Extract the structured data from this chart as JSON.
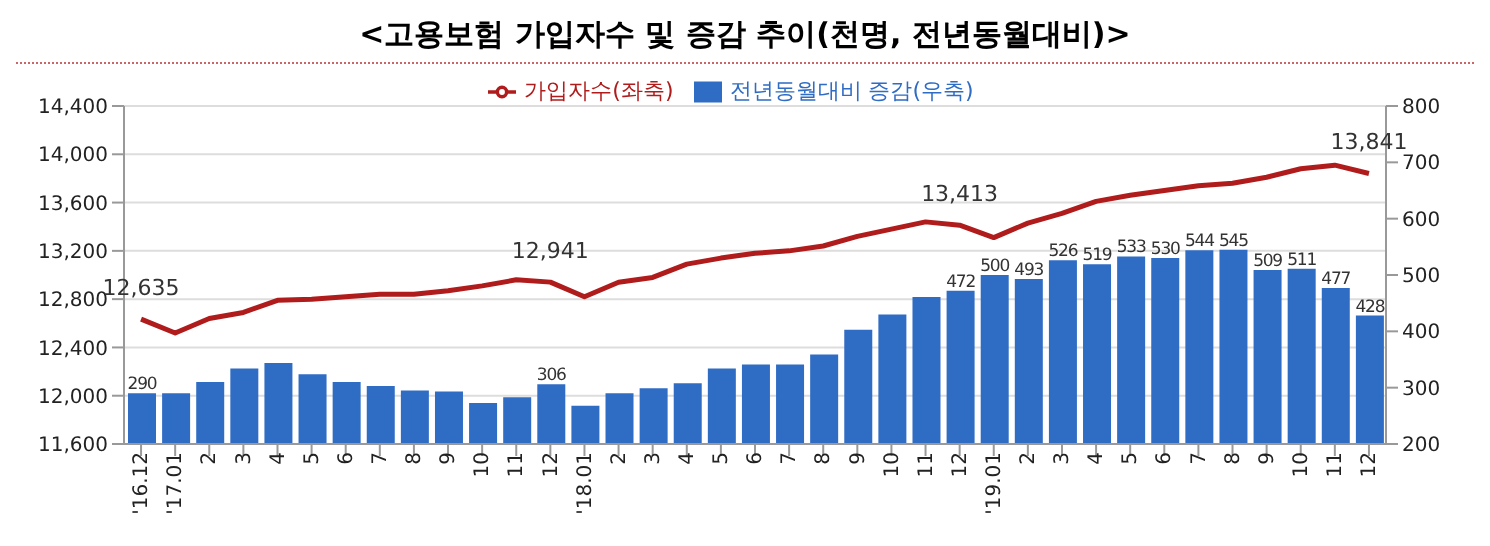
{
  "chart_data": {
    "type": "bar",
    "title": "<고용보험 가입자수 및 증감 추이(천명, 전년동월대비)>",
    "categories": [
      "'16.12",
      "'17.01",
      "2",
      "3",
      "4",
      "5",
      "6",
      "7",
      "8",
      "9",
      "10",
      "11",
      "12",
      "'18.01",
      "2",
      "3",
      "4",
      "5",
      "6",
      "7",
      "8",
      "9",
      "10",
      "11",
      "12",
      "'19.01",
      "2",
      "3",
      "4",
      "5",
      "6",
      "7",
      "8",
      "9",
      "10",
      "11",
      "12"
    ],
    "series": [
      {
        "name": "전년동월대비 증감(우축)",
        "axis": "y2",
        "color": "#2f6cc4",
        "values": [
          290,
          290,
          310,
          334,
          344,
          324,
          310,
          303,
          295,
          293,
          273,
          283,
          306,
          268,
          290,
          299,
          308,
          334,
          341,
          341,
          359,
          403,
          430,
          461,
          472,
          500,
          493,
          526,
          519,
          533,
          530,
          544,
          545,
          509,
          511,
          477,
          428
        ],
        "value_labels": [
          "290",
          null,
          null,
          null,
          null,
          null,
          null,
          null,
          null,
          null,
          null,
          null,
          "306",
          null,
          null,
          null,
          null,
          null,
          null,
          null,
          null,
          null,
          null,
          null,
          "472",
          "500",
          "493",
          "526",
          "519",
          "533",
          "530",
          "544",
          "545",
          "509",
          "511",
          "477",
          "428"
        ]
      },
      {
        "name": "가입자수(좌축)",
        "type": "line",
        "color": "#b01c1c",
        "values": [
          12635,
          12520,
          12640,
          12690,
          12790,
          12800,
          12820,
          12840,
          12840,
          12870,
          12910,
          12960,
          12941,
          12820,
          12940,
          12980,
          13090,
          13140,
          13180,
          13200,
          13240,
          13320,
          13380,
          13440,
          13413,
          13310,
          13430,
          13510,
          13610,
          13660,
          13700,
          13740,
          13760,
          13810,
          13880,
          13910,
          13841
        ],
        "value_labels": [
          "12,635",
          null,
          null,
          null,
          null,
          null,
          null,
          null,
          null,
          null,
          null,
          null,
          "12,941",
          null,
          null,
          null,
          null,
          null,
          null,
          null,
          null,
          null,
          null,
          null,
          "13,413",
          null,
          null,
          null,
          null,
          null,
          null,
          null,
          null,
          null,
          null,
          null,
          "13,841"
        ]
      }
    ],
    "ylim": [
      11600,
      14400
    ],
    "yticks": [
      {
        "value": 11600,
        "label": "11,600"
      },
      {
        "value": 12000,
        "label": "12,000"
      },
      {
        "value": 12400,
        "label": "12,400"
      },
      {
        "value": 12800,
        "label": "12,800"
      },
      {
        "value": 13200,
        "label": "13,200"
      },
      {
        "value": 13600,
        "label": "13,600"
      },
      {
        "value": 14000,
        "label": "14,000"
      },
      {
        "value": 14400,
        "label": "14,400"
      }
    ],
    "y2lim": [
      200,
      800
    ],
    "y2ticks": [
      200,
      300,
      400,
      500,
      600,
      700,
      800
    ],
    "grid": "y",
    "legend": "top",
    "marker": "none"
  }
}
